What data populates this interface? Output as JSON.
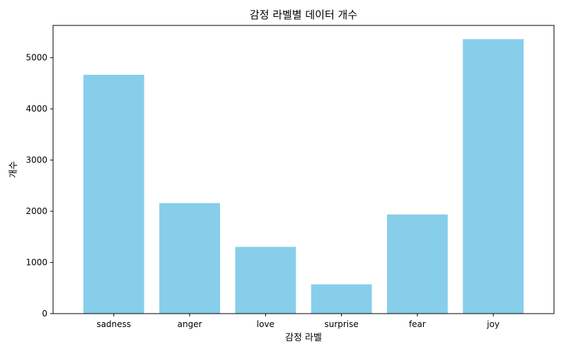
{
  "chart_data": {
    "type": "bar",
    "title": "감정 라벨별 데이터 개수",
    "xlabel": "감정 라벨",
    "ylabel": "개수",
    "categories": [
      "sadness",
      "anger",
      "love",
      "surprise",
      "fear",
      "joy"
    ],
    "values": [
      4666,
      2159,
      1304,
      572,
      1937,
      5362
    ],
    "ylim": [
      0,
      5630
    ],
    "yticks": [
      0,
      1000,
      2000,
      3000,
      4000,
      5000
    ],
    "grid": false,
    "bar_color": "#87CEEB"
  }
}
